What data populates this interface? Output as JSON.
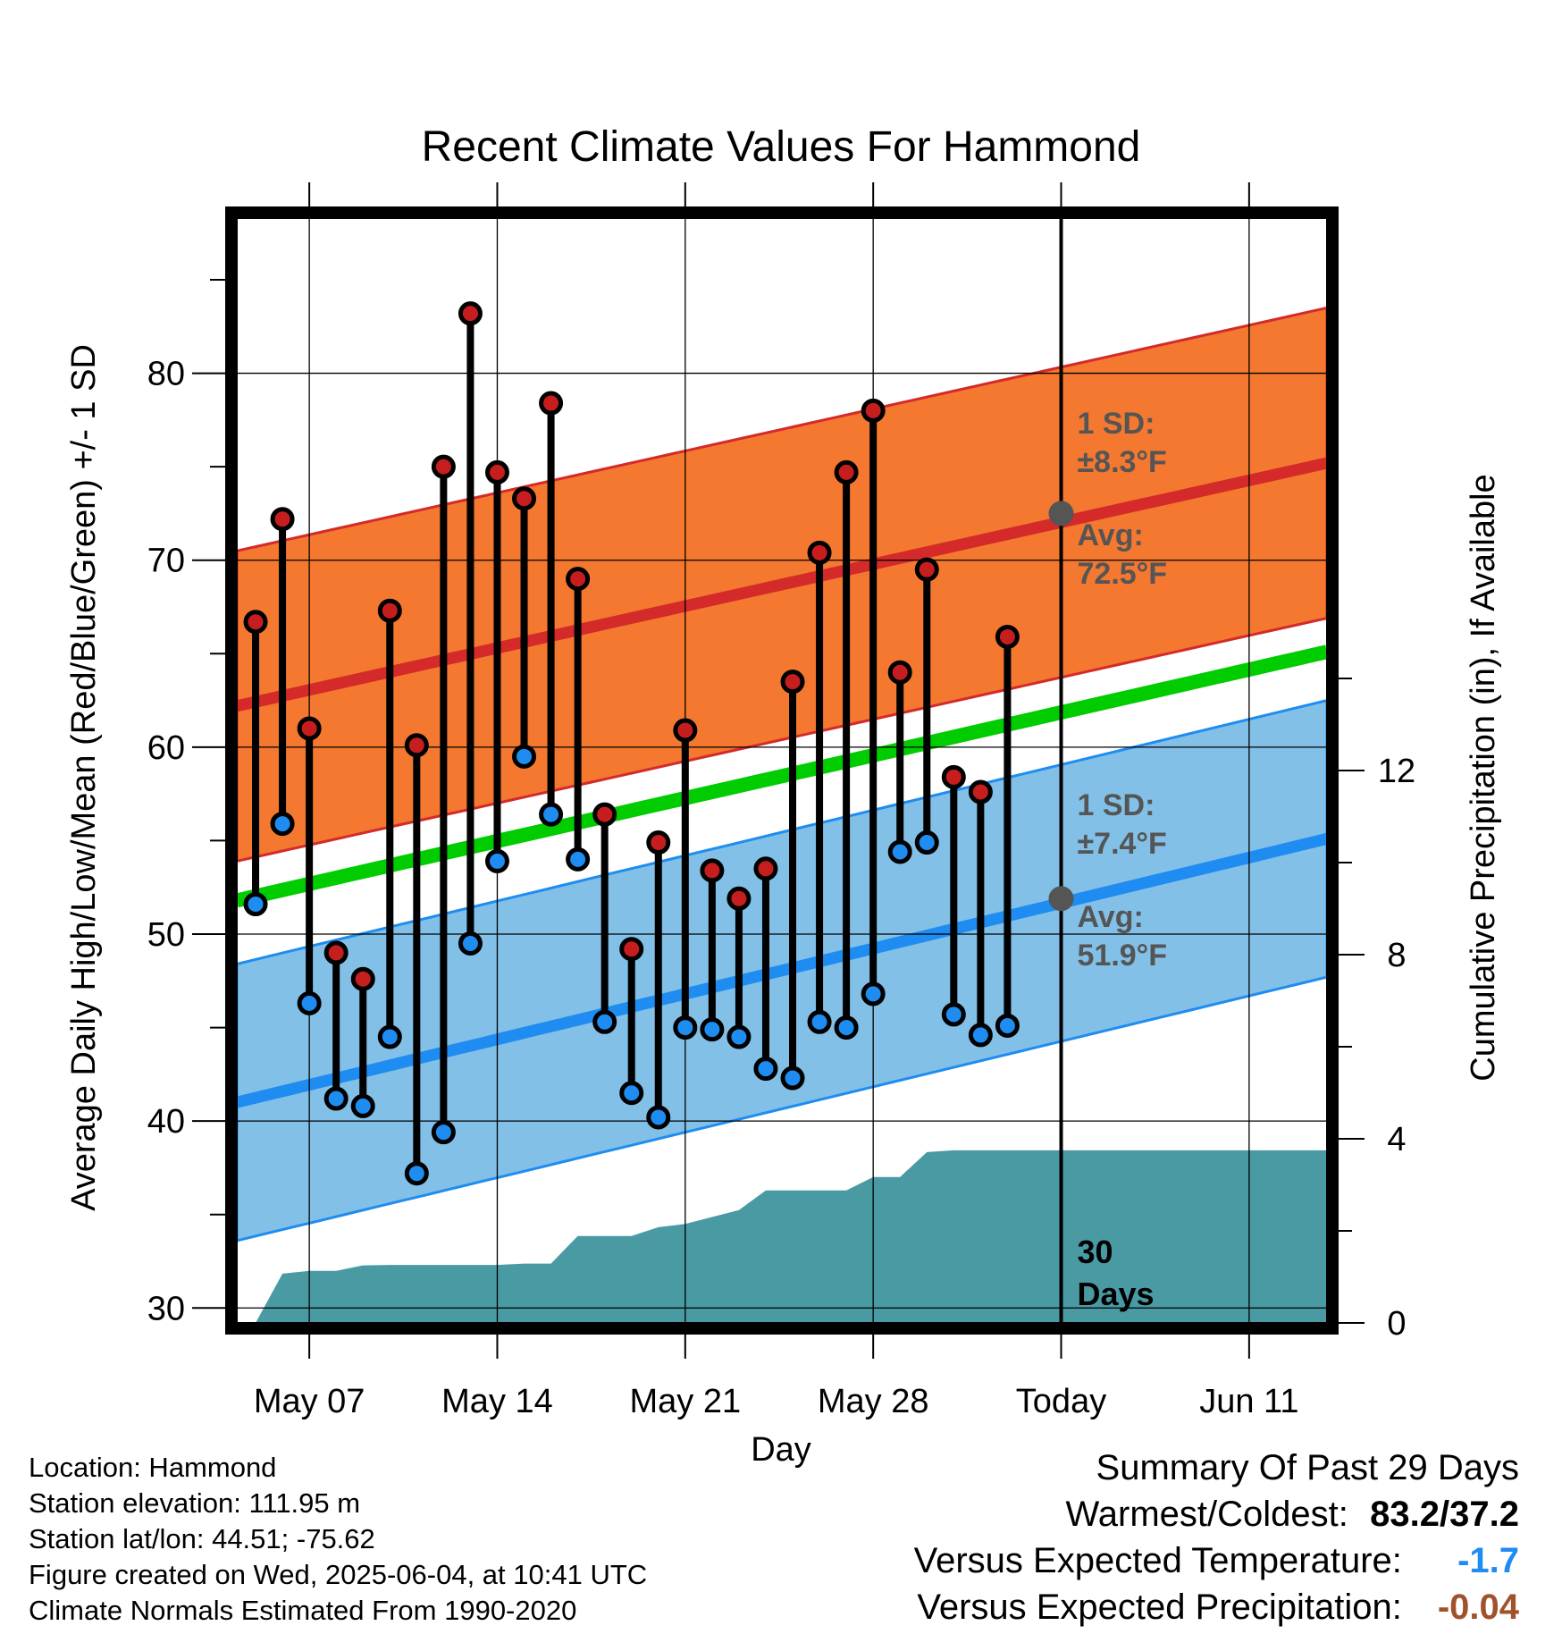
{
  "chart_data": {
    "type": "line",
    "title": "Recent Climate Values For Hammond",
    "xlabel": "Day",
    "ylabel": "Average Daily High/Low/Mean (Red/Blue/Green) +/- 1 SD",
    "y2label": "Cumulative Precipitation (in), If Available",
    "x_tick_labels": [
      "May 07",
      "May 14",
      "May 21",
      "May 28",
      "Today",
      "Jun 11"
    ],
    "x_tick_days": [
      7,
      14,
      21,
      28,
      35,
      42
    ],
    "x_range_days": [
      4.3,
      44.9
    ],
    "today_day": 35,
    "ylim": [
      29.2,
      88.3
    ],
    "y_ticks": [
      30,
      40,
      50,
      60,
      70,
      80
    ],
    "y2lim": [
      0,
      24
    ],
    "y2_ticks": [
      0,
      4,
      8,
      12
    ],
    "grid": true,
    "colors": {
      "high_band": "#f4782f",
      "high_avg": "#d42a2a",
      "low_band": "#82c0e8",
      "low_avg": "#1e8cf0",
      "mean": "#00cc00",
      "precip": "#4a9aa4",
      "high_dot": "#c61e1e",
      "low_dot": "#1e8cf0",
      "annotation": "#555555",
      "temp_anomaly": "#1e8cf0",
      "precip_anomaly": "#a0522d"
    },
    "normals": {
      "days": [
        4.3,
        44.9
      ],
      "high_avg": [
        62.2,
        75.2
      ],
      "high_sd": [
        8.3,
        8.3
      ],
      "low_avg": [
        41.0,
        55.1
      ],
      "low_sd": [
        7.4,
        7.4
      ],
      "mean": [
        51.8,
        65.1
      ]
    },
    "series": [
      {
        "name": "High",
        "days": [
          5,
          6,
          7,
          8,
          9,
          10,
          11,
          12,
          13,
          14,
          15,
          16,
          17,
          18,
          19,
          20,
          21,
          22,
          23,
          24,
          25,
          26,
          27,
          28,
          29,
          30,
          31,
          32,
          33
        ],
        "values": [
          66.7,
          72.2,
          61.0,
          49.0,
          47.6,
          67.3,
          60.1,
          75.0,
          83.2,
          74.7,
          73.3,
          78.4,
          69.0,
          56.4,
          49.2,
          54.9,
          60.9,
          53.4,
          51.9,
          53.5,
          63.5,
          70.4,
          74.7,
          78.0,
          64.0,
          69.5,
          58.4,
          57.6,
          65.9
        ]
      },
      {
        "name": "Low",
        "days": [
          5,
          6,
          7,
          8,
          9,
          10,
          11,
          12,
          13,
          14,
          15,
          16,
          17,
          18,
          19,
          20,
          21,
          22,
          23,
          24,
          25,
          26,
          27,
          28,
          29,
          30,
          31,
          32,
          33
        ],
        "values": [
          51.6,
          55.9,
          46.3,
          41.2,
          40.8,
          44.5,
          37.2,
          39.4,
          49.5,
          53.9,
          59.5,
          56.4,
          54.0,
          45.3,
          41.5,
          40.2,
          45.0,
          44.9,
          44.5,
          42.8,
          42.3,
          45.3,
          45.0,
          46.8,
          54.4,
          54.9,
          45.7,
          44.6,
          45.1
        ]
      },
      {
        "name": "Precipitation",
        "days": [
          5,
          6,
          7,
          8,
          9,
          10,
          11,
          12,
          13,
          14,
          15,
          16,
          17,
          18,
          19,
          20,
          21,
          22,
          23,
          24,
          25,
          26,
          27,
          28,
          29,
          30,
          31,
          32,
          33,
          34,
          35,
          44.9
        ],
        "values": [
          0,
          1.07,
          1.13,
          1.13,
          1.25,
          1.26,
          1.26,
          1.26,
          1.26,
          1.26,
          1.29,
          1.29,
          1.89,
          1.89,
          1.89,
          2.08,
          2.15,
          2.3,
          2.45,
          2.88,
          2.88,
          2.88,
          2.88,
          3.17,
          3.17,
          3.71,
          3.75,
          3.75,
          3.75,
          3.75,
          3.75,
          3.75
        ]
      }
    ],
    "annotations": {
      "high_sd_line1": "1 SD:",
      "high_sd_line2": "±8.3°F",
      "high_avg_line1": "Avg:",
      "high_avg_line2": "72.5°F",
      "high_avg_value": 72.5,
      "low_sd_line1": "1 SD:",
      "low_sd_line2": "±7.4°F",
      "low_avg_line1": "Avg:",
      "low_avg_line2": "51.9°F",
      "low_avg_value": 51.9,
      "days_line1": "30",
      "days_line2": "Days"
    }
  },
  "footer": {
    "location": "Location: Hammond",
    "elevation": "Station elevation: 111.95 m",
    "latlon": "Station lat/lon: 44.51; -75.62",
    "created": "Figure created on Wed, 2025-06-04, at 10:41 UTC",
    "normals": "Climate Normals Estimated From 1990-2020"
  },
  "summary": {
    "heading": "Summary Of Past 29 Days",
    "warm_cold_label": "Warmest/Coldest:",
    "warm_cold_value": "83.2/37.2",
    "temp_label": "Versus Expected Temperature:",
    "temp_value": "-1.7",
    "precip_label": "Versus Expected Precipitation:",
    "precip_value": "-0.04"
  }
}
